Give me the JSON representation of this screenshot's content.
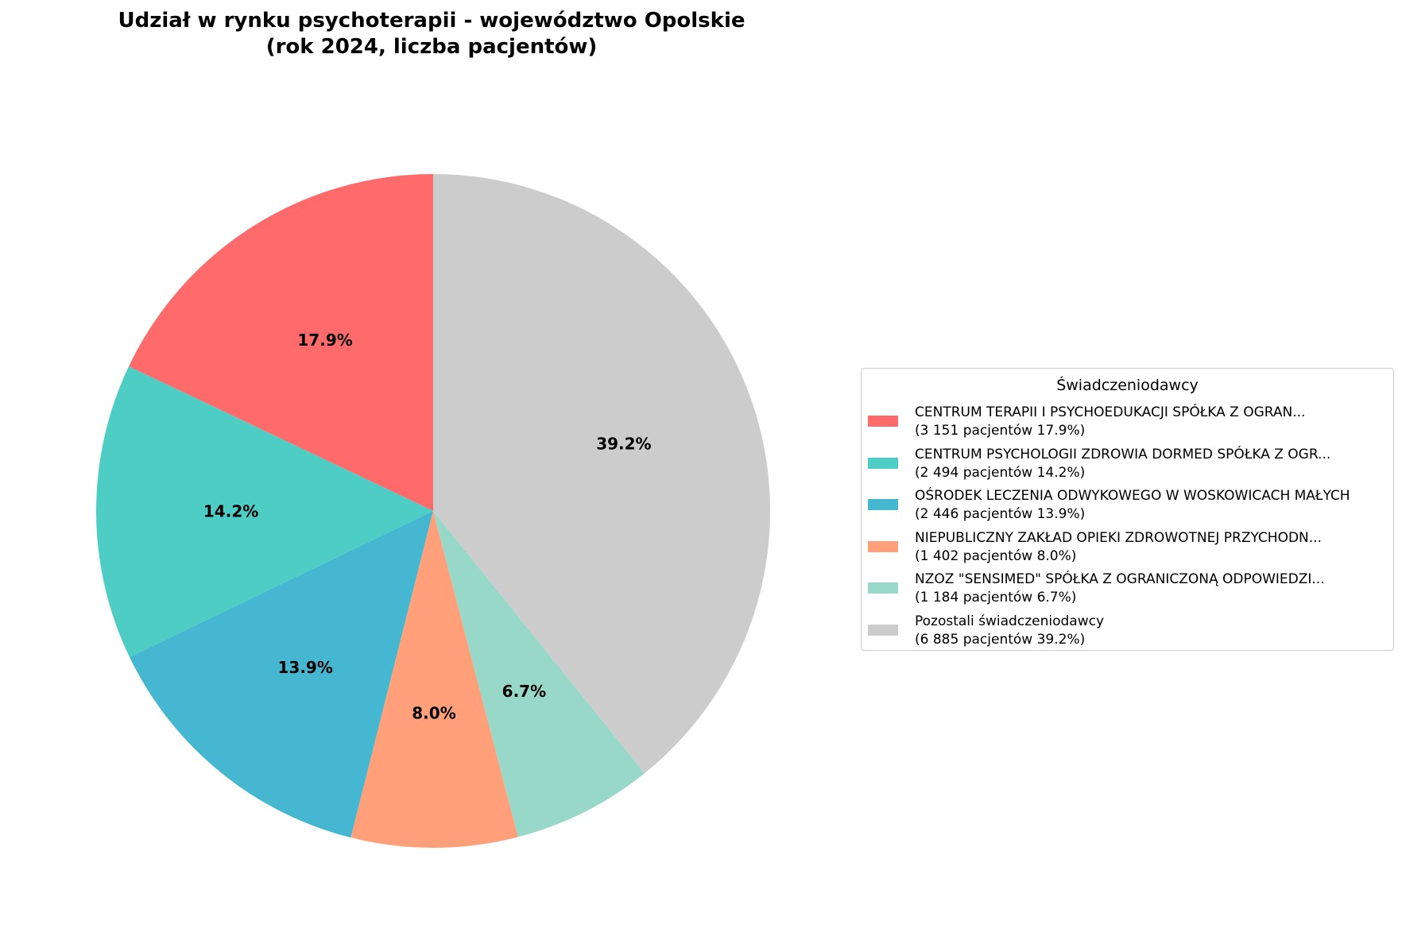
{
  "chart_data": {
    "type": "pie",
    "title": "Udział w rynku psychoterapii - województwo Opolskie\n(rok 2024, liczba pacjentów)",
    "legend_title": "Świadczeniodawcy",
    "legend_position": "right",
    "start_angle": 90,
    "direction": "counterclockwise",
    "slices": [
      {
        "name": "CENTRUM TERAPII I PSYCHOEDUKACJI SPÓŁKA Z OGRAN...",
        "value": 3151,
        "pct_label": "17.9%",
        "legend_detail": "(3 151 pacjentów  17.9%)",
        "color": "#FF6B6B"
      },
      {
        "name": "CENTRUM PSYCHOLOGII ZDROWIA DORMED SPÓŁKA Z OGR...",
        "value": 2494,
        "pct_label": "14.2%",
        "legend_detail": "(2 494 pacjentów  14.2%)",
        "color": "#4ECDC4"
      },
      {
        "name": "OŚRODEK LECZENIA ODWYKOWEGO W WOSKOWICACH MAŁYCH",
        "value": 2446,
        "pct_label": "13.9%",
        "legend_detail": "(2 446 pacjentów  13.9%)",
        "color": "#45B7D1"
      },
      {
        "name": "NIEPUBLICZNY ZAKŁAD OPIEKI ZDROWOTNEJ PRZYCHODN...",
        "value": 1402,
        "pct_label": "8.0%",
        "legend_detail": "(1 402 pacjentów  8.0%)",
        "color": "#FFA07A"
      },
      {
        "name": "NZOZ \"SENSIMED\" SPÓŁKA Z OGRANICZONĄ ODPOWIEDZI...",
        "value": 1184,
        "pct_label": "6.7%",
        "legend_detail": "(1 184 pacjentów  6.7%)",
        "color": "#98D8C8"
      },
      {
        "name": "Pozostali świadczeniodawcy",
        "value": 6885,
        "pct_label": "39.2%",
        "legend_detail": "(6 885 pacjentów  39.2%)",
        "color": "#CCCCCC"
      }
    ]
  }
}
